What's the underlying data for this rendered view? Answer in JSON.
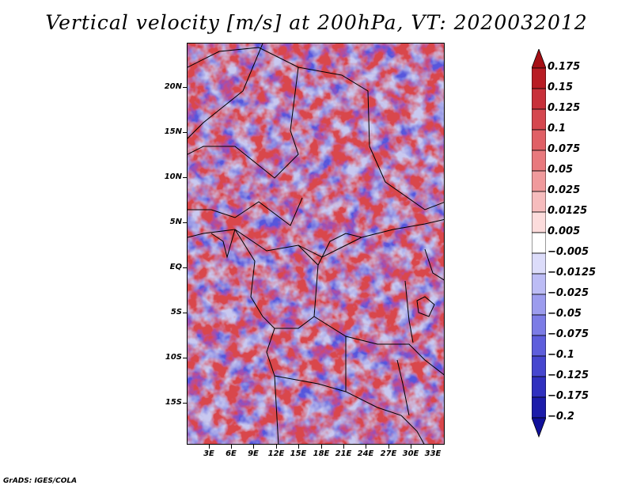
{
  "title": "Vertical velocity [m/s] at 200hPa, VT: 2020032012",
  "footer": "GrADS: IGES/COLA",
  "map": {
    "region": "Central Africa",
    "lat_labels": [
      "20N",
      "15N",
      "10N",
      "5N",
      "EQ",
      "5S",
      "10S",
      "15S"
    ],
    "lon_labels": [
      "3E",
      "6E",
      "9E",
      "12E",
      "15E",
      "18E",
      "21E",
      "24E",
      "27E",
      "30E",
      "33E"
    ]
  },
  "colorbar": {
    "labels": [
      "0.175",
      "0.15",
      "0.125",
      "0.1",
      "0.075",
      "0.05",
      "0.025",
      "0.0125",
      "0.005",
      "−0.005",
      "−0.0125",
      "−0.025",
      "−0.05",
      "−0.075",
      "−0.1",
      "−0.125",
      "−0.175",
      "−0.2"
    ],
    "colors": [
      "#a50f15",
      "#b81c24",
      "#c8303a",
      "#d5474f",
      "#e06066",
      "#e8797d",
      "#f09a9c",
      "#f6bcbd",
      "#fcdcdc",
      "#ffffff",
      "#dcdcfa",
      "#bcbcf5",
      "#9c9cee",
      "#7c7ce6",
      "#5e5edc",
      "#4646cf",
      "#3030bf",
      "#1c1caa",
      "#10109a"
    ]
  }
}
